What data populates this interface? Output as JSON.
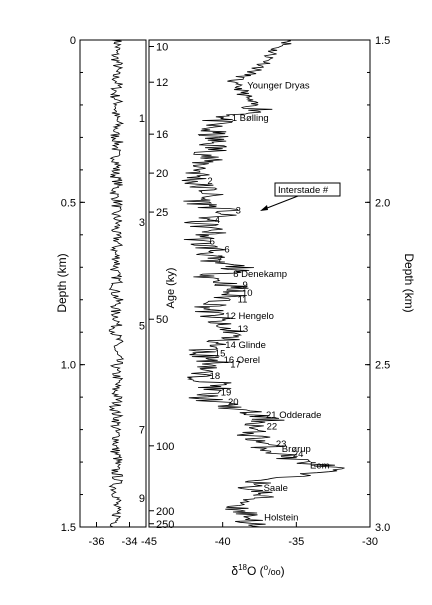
{
  "chart_data": {
    "type": "line",
    "title": "",
    "left_panel": {
      "xlim": [
        -37,
        -33
      ],
      "x_ticks": [
        -36,
        -34
      ],
      "ylim": [
        0,
        1.5
      ],
      "y_ticks": [
        0,
        0.5,
        1.0,
        1.5
      ],
      "y_tick_labels": [
        "0",
        "0.5",
        "1.0",
        "1.5"
      ],
      "ylabel": "Depth (km)",
      "mean_value": -34.8,
      "noise_amplitude": 0.35
    },
    "right_panel": {
      "xlim": [
        -45,
        -30
      ],
      "x_ticks": [
        -45,
        -40,
        -35,
        -30
      ],
      "ylim": [
        1.5,
        3.0
      ],
      "y_ticks": [
        1.5,
        2.0,
        2.5,
        3.0
      ],
      "y_tick_labels": [
        "1.5",
        "2.0",
        "2.5",
        "3.0"
      ],
      "ylabel": "Depth (km)",
      "xlabel_main": "δ",
      "xlabel_sup": "18",
      "xlabel_tail": "O (",
      "xlabel_sup2": "o",
      "xlabel_sub": "/oo",
      "xlabel_end": ")",
      "inner_age_axis": {
        "label": "Age (ky)",
        "odd_ticks": [
          {
            "label": "1",
            "depth": 1.74
          },
          {
            "label": "3",
            "depth": 2.06
          },
          {
            "label": "5",
            "depth": 2.38
          },
          {
            "label": "7",
            "depth": 2.7
          },
          {
            "label": "9",
            "depth": 2.91
          }
        ],
        "labels": [
          {
            "label": "10",
            "depth": 1.52
          },
          {
            "label": "12",
            "depth": 1.63
          },
          {
            "label": "16",
            "depth": 1.79
          },
          {
            "label": "20",
            "depth": 1.91
          },
          {
            "label": "25",
            "depth": 2.03
          },
          {
            "label": "50",
            "depth": 2.36
          },
          {
            "label": "100",
            "depth": 2.75
          },
          {
            "label": "200",
            "depth": 2.95
          },
          {
            "label": "250",
            "depth": 2.99
          }
        ]
      },
      "series_profile": [
        [
          1.5,
          -35.2
        ],
        [
          1.53,
          -36.5
        ],
        [
          1.57,
          -37.0
        ],
        [
          1.6,
          -38.0
        ],
        [
          1.63,
          -39.5
        ],
        [
          1.65,
          -38.8
        ],
        [
          1.69,
          -38.2
        ],
        [
          1.72,
          -37.2
        ],
        [
          1.74,
          -40.2
        ],
        [
          1.77,
          -41.0
        ],
        [
          1.8,
          -40.7
        ],
        [
          1.84,
          -40.6
        ],
        [
          1.87,
          -41.2
        ],
        [
          1.9,
          -41.5
        ],
        [
          1.94,
          -41.9
        ],
        [
          1.97,
          -40.8
        ],
        [
          2.0,
          -41.6
        ],
        [
          2.03,
          -39.6
        ],
        [
          2.06,
          -41.7
        ],
        [
          2.09,
          -40.6
        ],
        [
          2.12,
          -41.7
        ],
        [
          2.15,
          -40.5
        ],
        [
          2.18,
          -41.3
        ],
        [
          2.2,
          -38.7
        ],
        [
          2.23,
          -40.8
        ],
        [
          2.26,
          -39.2
        ],
        [
          2.3,
          -39.8
        ],
        [
          2.33,
          -41.1
        ],
        [
          2.36,
          -40.4
        ],
        [
          2.38,
          -40.6
        ],
        [
          2.4,
          -39.0
        ],
        [
          2.43,
          -40.2
        ],
        [
          2.46,
          -41.5
        ],
        [
          2.5,
          -40.3
        ],
        [
          2.53,
          -42.0
        ],
        [
          2.56,
          -40.2
        ],
        [
          2.6,
          -41.4
        ],
        [
          2.63,
          -39.5
        ],
        [
          2.67,
          -36.9
        ],
        [
          2.7,
          -38.3
        ],
        [
          2.73,
          -37.6
        ],
        [
          2.76,
          -36.8
        ],
        [
          2.79,
          -35.3
        ],
        [
          2.82,
          -32.4
        ],
        [
          2.84,
          -35.0
        ],
        [
          2.87,
          -38.4
        ],
        [
          2.9,
          -37.3
        ],
        [
          2.94,
          -39.0
        ],
        [
          2.97,
          -38.0
        ],
        [
          3.0,
          -38.2
        ]
      ],
      "annotations": [
        {
          "label": "Younger Dryas",
          "depth": 1.64
        },
        {
          "label": "1 Bølling",
          "depth": 1.74
        },
        {
          "label": "2",
          "depth": 1.935
        },
        {
          "label": "3",
          "depth": 2.025
        },
        {
          "label": "4",
          "depth": 2.055
        },
        {
          "label": "5",
          "depth": 2.12
        },
        {
          "label": "6",
          "depth": 2.145
        },
        {
          "label": "7",
          "depth": 2.175
        },
        {
          "label": "8 Denekamp",
          "depth": 2.22
        },
        {
          "label": "9",
          "depth": 2.255
        },
        {
          "label": "10",
          "depth": 2.28
        },
        {
          "label": "11",
          "depth": 2.3
        },
        {
          "label": "12 Hengelo",
          "depth": 2.35
        },
        {
          "label": "13",
          "depth": 2.39
        },
        {
          "label": "14 Glinde",
          "depth": 2.44
        },
        {
          "label": "15",
          "depth": 2.465
        },
        {
          "label": "16 Oerel",
          "depth": 2.485
        },
        {
          "label": "17",
          "depth": 2.5
        },
        {
          "label": "18",
          "depth": 2.535
        },
        {
          "label": "19",
          "depth": 2.585
        },
        {
          "label": "20",
          "depth": 2.615
        },
        {
          "label": "21 Odderade",
          "depth": 2.655
        },
        {
          "label": "22",
          "depth": 2.69
        },
        {
          "label": "23",
          "depth": 2.745
        },
        {
          "label": "Brørup",
          "depth": 2.76
        },
        {
          "label": "24",
          "depth": 2.775
        },
        {
          "label": "Eem",
          "depth": 2.81
        },
        {
          "label": "Saale",
          "depth": 2.88
        },
        {
          "label": "Holstein",
          "depth": 2.97
        }
      ],
      "callout": {
        "label": "Interstade #",
        "depth": 1.95
      }
    }
  }
}
